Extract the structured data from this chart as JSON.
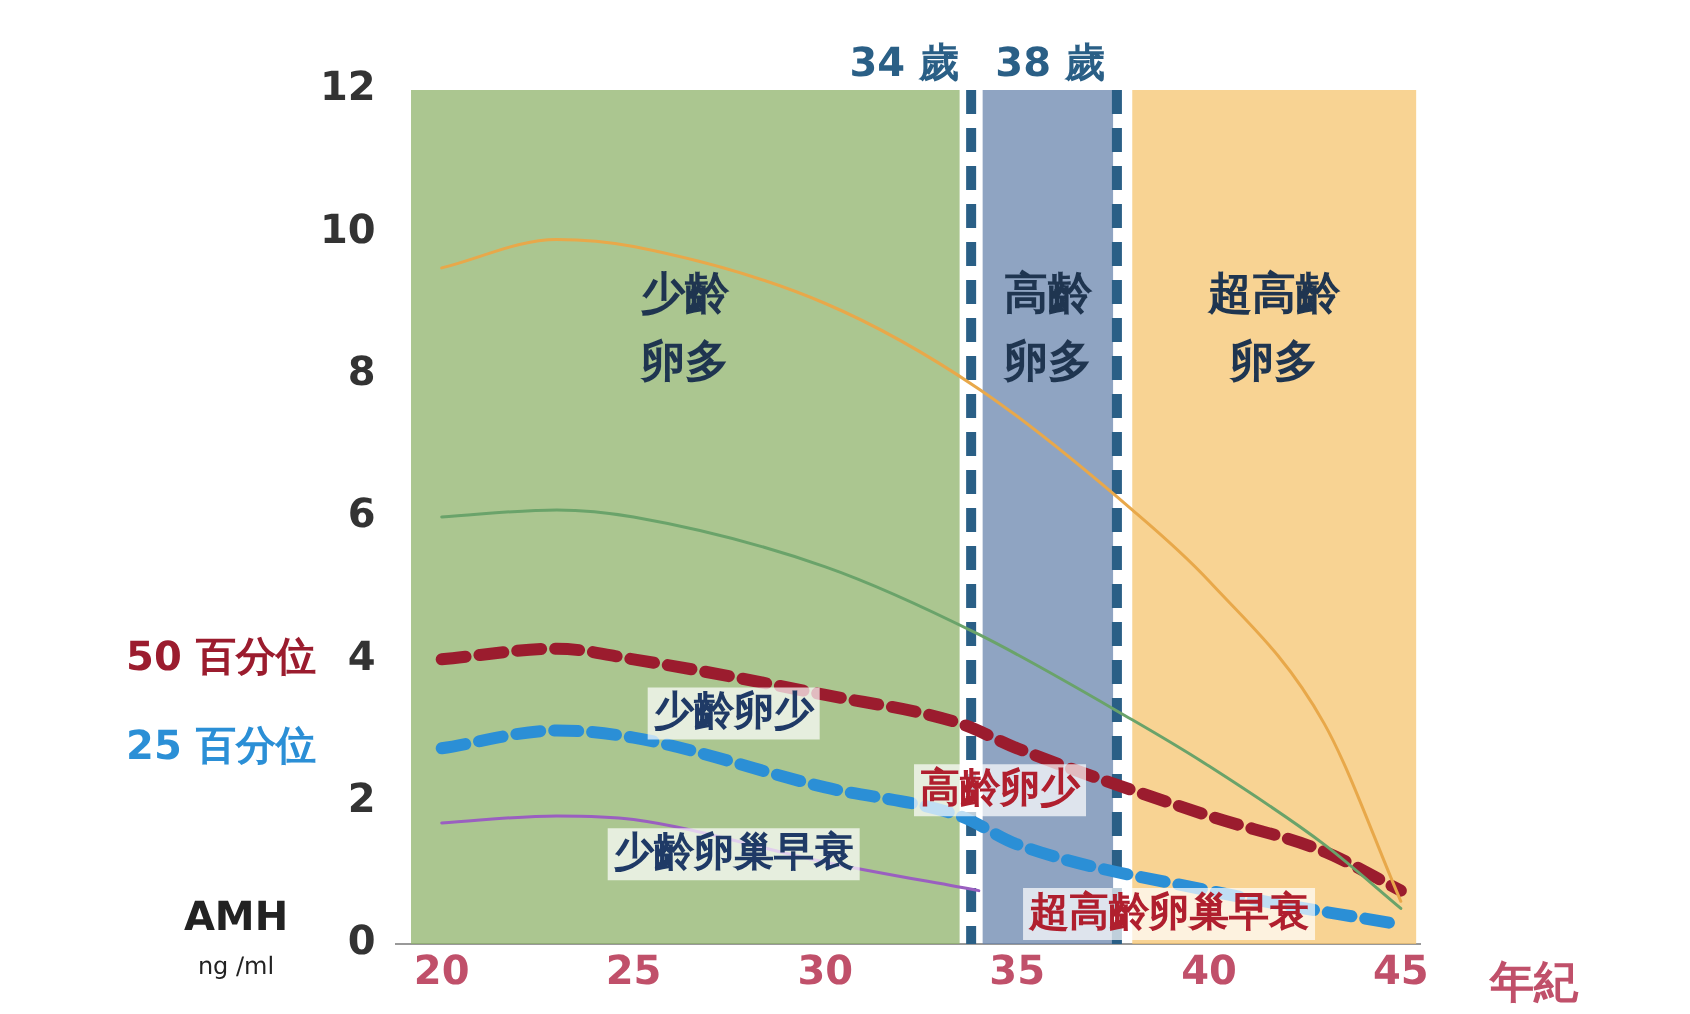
{
  "chart_data": {
    "type": "line",
    "xlabel": "年紀",
    "ylabel": "AMH ng /ml",
    "xlim": [
      18.8,
      45.5
    ],
    "xticks": [
      20,
      25,
      30,
      35,
      40,
      45
    ],
    "ylim": [
      0,
      12
    ],
    "yticks": [
      0,
      2,
      4,
      6,
      8,
      10,
      12
    ],
    "grid": false,
    "legend": false,
    "marker": "none",
    "series": [
      {
        "color": "#e8a84a",
        "x": [
          20,
          23,
          25,
          30,
          34,
          38,
          40,
          43,
          45
        ],
        "values": [
          9.5,
          9.9,
          9.8,
          9.0,
          7.8,
          6.1,
          5.1,
          3.1,
          0.6
        ]
      },
      {
        "color": "#6aa36a",
        "x": [
          20,
          23,
          25,
          30,
          34,
          38,
          40,
          43,
          45
        ],
        "values": [
          6.0,
          6.1,
          6.0,
          5.3,
          4.35,
          3.15,
          2.5,
          1.4,
          0.5
        ]
      },
      {
        "color": "#9a5fc0",
        "x": [
          20,
          23,
          25,
          30,
          34
        ],
        "values": [
          1.7,
          1.8,
          1.75,
          1.15,
          0.75
        ]
      },
      {
        "name": "50 百分位",
        "color": "#9b1c2e",
        "line_style": "dashed",
        "x": [
          20,
          23,
          25,
          30,
          33.5,
          35,
          40,
          43,
          45
        ],
        "values": [
          4.0,
          4.15,
          4.0,
          3.5,
          3.1,
          2.75,
          1.8,
          1.3,
          0.75
        ]
      },
      {
        "name": "25 百分位",
        "color": "#2b8fd6",
        "line_style": "dashed",
        "x": [
          20,
          23,
          25,
          30,
          33.5,
          35,
          40,
          45
        ],
        "values": [
          2.75,
          3.0,
          2.9,
          2.2,
          1.8,
          1.4,
          0.75,
          0.27
        ]
      }
    ],
    "bands": [
      {
        "axis": "x",
        "from": 19.2,
        "to": 33.5,
        "label": "少齡卵多",
        "color": "#8fb36b"
      },
      {
        "axis": "x",
        "from": 34.1,
        "to": 37.5,
        "label": "高齡卵多",
        "color": "#6a86ad"
      },
      {
        "axis": "x",
        "from": 38.0,
        "to": 45.4,
        "label": "超高齡卵多",
        "color": "#f5c46f"
      }
    ],
    "ref_lines": [
      {
        "axis": "x",
        "value": 33.8,
        "label": "34 歲",
        "color": "#2a5f86",
        "line_style": "dashed"
      },
      {
        "axis": "x",
        "value": 37.6,
        "label": "38 歲",
        "color": "#2a5f86",
        "line_style": "dashed"
      }
    ],
    "annotations": [
      "少齡卵少",
      "高齡卵少",
      "少齡卵巢早衰",
      "超高齡卵巢早衰"
    ]
  }
}
